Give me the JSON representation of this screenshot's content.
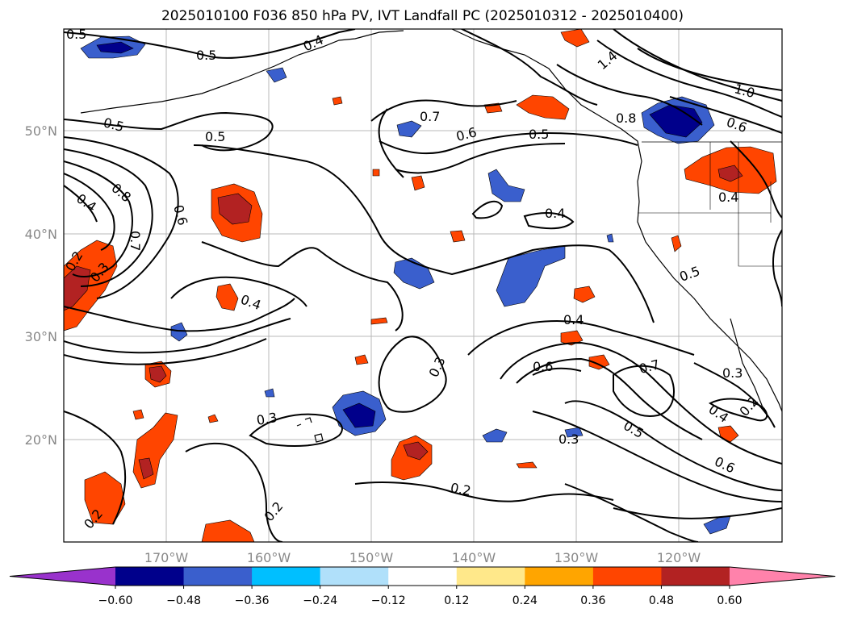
{
  "title": "2025010100 F036 850 hPa PV, IVT Landfall PC (2025010312 - 2025010400)",
  "lon_ticks": [
    "170°W",
    "160°W",
    "150°W",
    "140°W",
    "130°W",
    "120°W"
  ],
  "lat_ticks": [
    "50°N",
    "40°N",
    "30°N",
    "20°N"
  ],
  "colorbar": {
    "levels": [
      "−0.60",
      "−0.48",
      "−0.36",
      "−0.24",
      "−0.12",
      "0.12",
      "0.24",
      "0.36",
      "0.48",
      "0.60"
    ],
    "colors": [
      "#9932cc",
      "#00008b",
      "#3a5fcd",
      "#00bfff",
      "#b0e0fa",
      "#ffffff",
      "#ffe88a",
      "#ffa500",
      "#ff4500",
      "#b22222",
      "#ff82ab"
    ]
  },
  "contour_labels": [
    "0.5",
    "0.4",
    "0.5",
    "0.5",
    "0.5",
    "0.7",
    "0.6",
    "0.5",
    "0.8",
    "0.6",
    "1.4",
    "1.0",
    "0.8",
    "0.4",
    "0.6",
    "0.7",
    "0.2",
    "0.3",
    "0.4",
    "0.4",
    "0.4",
    "0.5",
    "0.4",
    "0.6",
    "0.7",
    "0.3",
    "0.2",
    "0.4",
    "0.3",
    "0.3",
    "0.3",
    "0.5",
    "0.6",
    "0.2",
    "0.2",
    "0.2"
  ]
}
